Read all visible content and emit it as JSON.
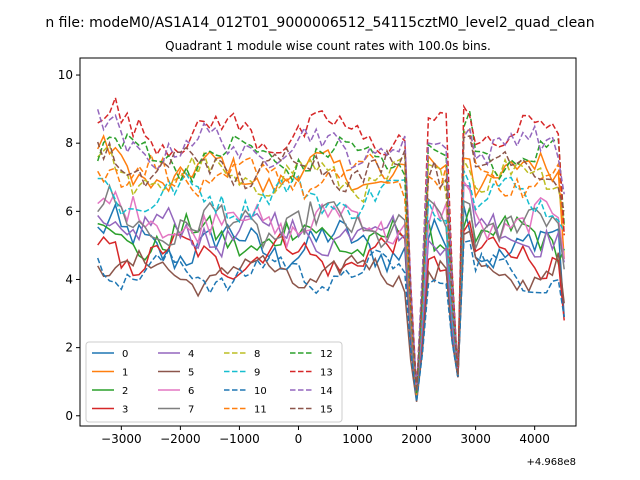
{
  "figure": {
    "suptitle": "n file: modeM0/AS1A14_012T01_9000006512_54115cztM0_level2_quad_clean",
    "title": "Quadrant 1 module wise count rates with 100.0s bins."
  },
  "chart_data": {
    "type": "line",
    "title": "Quadrant 1 module wise count rates with 100.0s bins.",
    "xlabel": "",
    "ylabel": "",
    "x_offset_label": "+4.968e8",
    "xlim": [
      -3700,
      4700
    ],
    "ylim": [
      -0.3,
      10.5
    ],
    "xticks": [
      -3000,
      -2000,
      -1000,
      0,
      1000,
      2000,
      3000,
      4000
    ],
    "xtick_labels": [
      "−3000",
      "−2000",
      "−1000",
      "0",
      "1000",
      "2000",
      "3000",
      "4000"
    ],
    "yticks": [
      0,
      2,
      4,
      6,
      8,
      10
    ],
    "ytick_labels": [
      "0",
      "2",
      "4",
      "6",
      "8",
      "10"
    ],
    "grid": false,
    "legend_position": "lower-left",
    "legend_columns": 4,
    "x_start": -3400,
    "x_step": 100,
    "n_points": 80,
    "dips": [
      {
        "x": 1900,
        "depth_frac": 0.55
      },
      {
        "x": 2000,
        "depth_frac": 0.92
      },
      {
        "x": 2100,
        "depth_frac": 0.5
      },
      {
        "x": 2600,
        "depth_frac": 0.5
      },
      {
        "x": 2700,
        "depth_frac": 0.97
      }
    ],
    "series": [
      {
        "name": "0",
        "color": "#1f77b4",
        "dash": "solid",
        "base": 5.0,
        "noise": 0.45,
        "end": 2.9
      },
      {
        "name": "1",
        "color": "#ff7f0e",
        "dash": "solid",
        "base": 7.1,
        "noise": 0.35,
        "end": 4.6
      },
      {
        "name": "2",
        "color": "#2ca02c",
        "dash": "solid",
        "base": 5.2,
        "noise": 0.4,
        "end": 4.9
      },
      {
        "name": "3",
        "color": "#d62728",
        "dash": "solid",
        "base": 4.7,
        "noise": 0.35,
        "end": 2.8
      },
      {
        "name": "4",
        "color": "#9467bd",
        "dash": "solid",
        "base": 5.4,
        "noise": 0.4,
        "end": 4.5
      },
      {
        "name": "5",
        "color": "#8c564b",
        "dash": "solid",
        "base": 4.2,
        "noise": 0.3,
        "end": 3.3
      },
      {
        "name": "6",
        "color": "#e377c2",
        "dash": "solid",
        "base": 5.7,
        "noise": 0.4,
        "end": 4.6
      },
      {
        "name": "7",
        "color": "#7f7f7f",
        "dash": "solid",
        "base": 5.6,
        "noise": 0.45,
        "end": 4.3
      },
      {
        "name": "8",
        "color": "#bcbd22",
        "dash": "dashed",
        "base": 7.0,
        "noise": 0.35,
        "end": 5.6
      },
      {
        "name": "9",
        "color": "#17becf",
        "dash": "dashed",
        "base": 6.4,
        "noise": 0.35,
        "end": 5.4
      },
      {
        "name": "10",
        "color": "#1f77b4",
        "dash": "dashed",
        "base": 4.2,
        "noise": 0.3,
        "end": 2.9
      },
      {
        "name": "11",
        "color": "#ff7f0e",
        "dash": "dashed",
        "base": 7.0,
        "noise": 0.35,
        "end": 5.3
      },
      {
        "name": "12",
        "color": "#2ca02c",
        "dash": "dashed",
        "base": 7.6,
        "noise": 0.35,
        "end": 5.6
      },
      {
        "name": "13",
        "color": "#d62728",
        "dash": "dashed",
        "base": 8.3,
        "noise": 0.35,
        "end": 5.3
      },
      {
        "name": "14",
        "color": "#9467bd",
        "dash": "dashed",
        "base": 7.9,
        "noise": 0.35,
        "end": 6.5
      },
      {
        "name": "15",
        "color": "#8c564b",
        "dash": "dashed",
        "base": 7.3,
        "noise": 0.35,
        "end": 6.0
      }
    ]
  }
}
